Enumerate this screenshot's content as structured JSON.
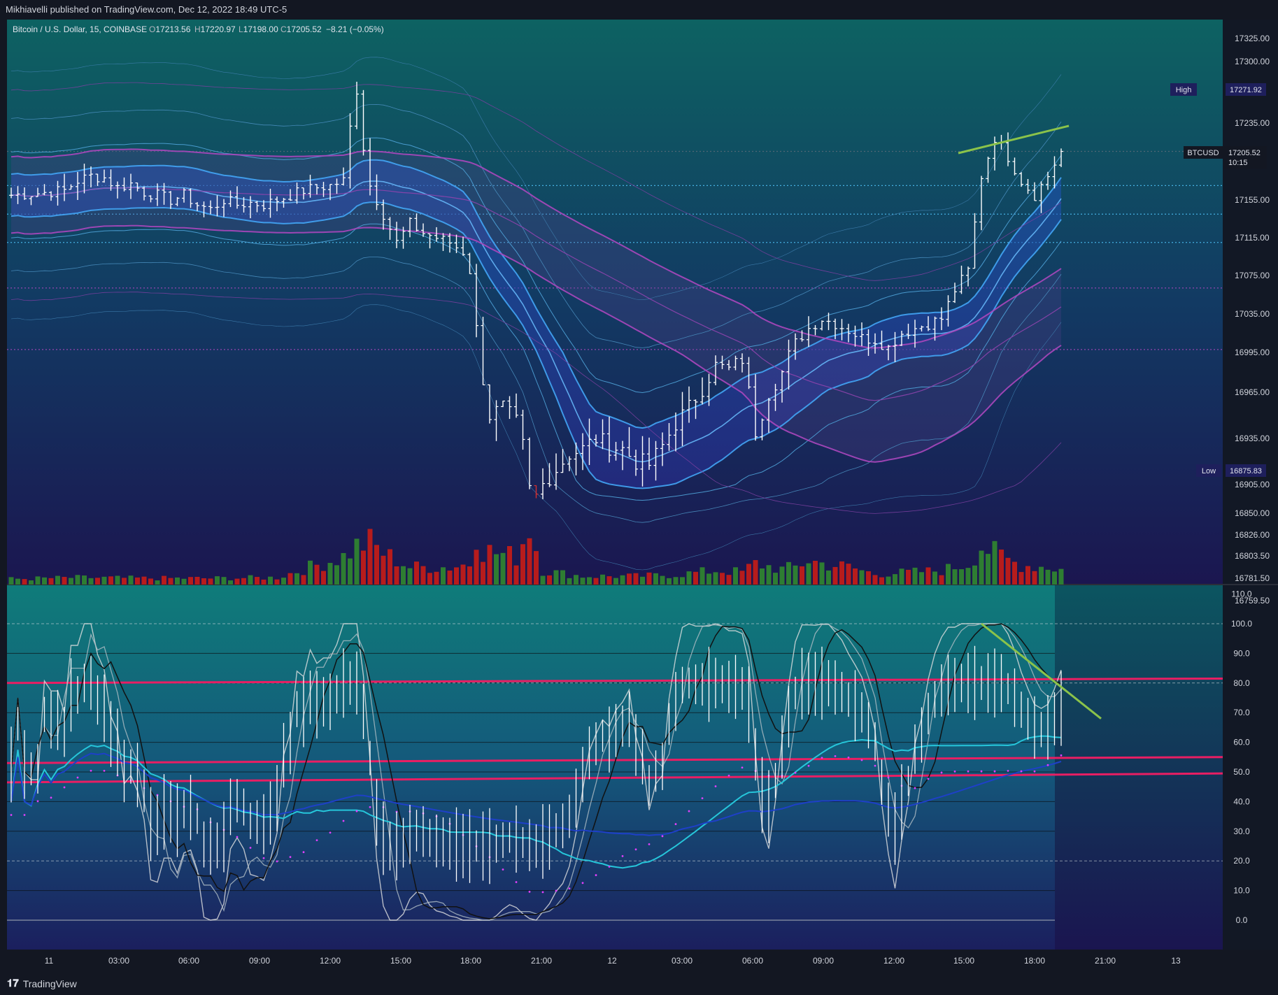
{
  "header": {
    "publish_line": "Mikhiavelli published on TradingView.com, Dec 12, 2022 18:49 UTC-5"
  },
  "symbol_bar": {
    "name": "Bitcoin / U.S. Dollar, 15, COINBASE",
    "o_label": "O",
    "o_value": "17213.56",
    "h_label": "H",
    "h_value": "17220.97",
    "l_label": "L",
    "l_value": "17198.00",
    "c_label": "C",
    "c_value": "17205.52",
    "change": "−8.21 (−0.05%)"
  },
  "price_badges": {
    "high_label": "High",
    "high_value": "17271.92",
    "last_label": "BTCUSD",
    "last_value": "17205.52",
    "countdown": "10:15",
    "low_label": "Low",
    "low_value": "16875.83"
  },
  "footer": {
    "brand": "TradingView",
    "logo_icon": "tradingview-logo-icon"
  },
  "colors": {
    "background": "#131722",
    "up": "#ffffff",
    "down": "#ffffff",
    "vol_up": "#2e7d32",
    "vol_down": "#b71c1c",
    "band_blue": "#2196f3",
    "band_purple": "#ab47bc",
    "trend_green": "#8bc34a",
    "osc_pink": "#e91e63",
    "osc_cyan": "#26c6da",
    "osc_blue": "#1e40c8"
  },
  "chart_data": [
    {
      "type": "candlestick",
      "pane": "price",
      "symbol": "BTCUSD",
      "title": "Bitcoin / U.S. Dollar, 15, COINBASE",
      "yticks": [
        17325.0,
        17300.0,
        17235.0,
        17155.0,
        17115.0,
        17075.0,
        17035.0,
        16995.0,
        16965.0,
        16935.0,
        16905.0,
        16850.0,
        16826.0,
        16803.5,
        16781.5,
        16759.5
      ],
      "ytick_labels": [
        "17325.00",
        "17300.00",
        "17235.00",
        "17155.00",
        "17115.00",
        "17075.00",
        "17035.00",
        "16995.00",
        "16965.00",
        "16935.00",
        "16905.00",
        "16850.00",
        "16826.00",
        "16803.50",
        "16781.50",
        "16759.50"
      ],
      "ylim": [
        16755.0,
        17340.0
      ],
      "xticks": [
        "11",
        "03:00",
        "06:00",
        "09:00",
        "12:00",
        "15:00",
        "18:00",
        "21:00",
        "12",
        "03:00",
        "06:00",
        "09:00",
        "12:00",
        "15:00",
        "18:00",
        "21:00",
        "13"
      ],
      "horizontal_levels": [
        17271.92,
        17205.52,
        17170,
        17140,
        17110,
        17062,
        16998
      ],
      "close_path": [
        [
          0,
          17160
        ],
        [
          4,
          17162
        ],
        [
          8,
          17165
        ],
        [
          10,
          17175
        ],
        [
          12,
          17180
        ],
        [
          14,
          17178
        ],
        [
          16,
          17168
        ],
        [
          18,
          17172
        ],
        [
          20,
          17163
        ],
        [
          22,
          17160
        ],
        [
          24,
          17155
        ],
        [
          26,
          17160
        ],
        [
          28,
          17150
        ],
        [
          30,
          17145
        ],
        [
          32,
          17155
        ],
        [
          34,
          17150
        ],
        [
          36,
          17152
        ],
        [
          38,
          17150
        ],
        [
          40,
          17155
        ],
        [
          42,
          17160
        ],
        [
          44,
          17165
        ],
        [
          46,
          17168
        ],
        [
          48,
          17170
        ],
        [
          50,
          17175
        ],
        [
          51,
          17230
        ],
        [
          52,
          17270
        ],
        [
          53,
          17210
        ],
        [
          54,
          17170
        ],
        [
          56,
          17140
        ],
        [
          58,
          17110
        ],
        [
          60,
          17130
        ],
        [
          62,
          17120
        ],
        [
          64,
          17115
        ],
        [
          66,
          17110
        ],
        [
          68,
          17100
        ],
        [
          69,
          17080
        ],
        [
          70,
          17020
        ],
        [
          71,
          16975
        ],
        [
          72,
          16950
        ],
        [
          74,
          16955
        ],
        [
          76,
          16945
        ],
        [
          77,
          16930
        ],
        [
          78,
          16900
        ],
        [
          79,
          16885
        ],
        [
          80,
          16905
        ],
        [
          82,
          16915
        ],
        [
          84,
          16925
        ],
        [
          86,
          16928
        ],
        [
          88,
          16935
        ],
        [
          90,
          16930
        ],
        [
          92,
          16928
        ],
        [
          94,
          16920
        ],
        [
          96,
          16918
        ],
        [
          98,
          16930
        ],
        [
          100,
          16945
        ],
        [
          102,
          16955
        ],
        [
          104,
          16968
        ],
        [
          106,
          16985
        ],
        [
          108,
          16982
        ],
        [
          110,
          16990
        ],
        [
          112,
          16940
        ],
        [
          114,
          16965
        ],
        [
          116,
          16980
        ],
        [
          118,
          17005
        ],
        [
          120,
          17020
        ],
        [
          122,
          17030
        ],
        [
          124,
          17025
        ],
        [
          126,
          17018
        ],
        [
          128,
          17010
        ],
        [
          130,
          17008
        ],
        [
          132,
          17000
        ],
        [
          134,
          17015
        ],
        [
          136,
          17020
        ],
        [
          138,
          17025
        ],
        [
          140,
          17030
        ],
        [
          142,
          17060
        ],
        [
          144,
          17080
        ],
        [
          146,
          17180
        ],
        [
          148,
          17220
        ],
        [
          150,
          17200
        ],
        [
          152,
          17175
        ],
        [
          154,
          17160
        ],
        [
          156,
          17180
        ],
        [
          158,
          17205.52
        ]
      ],
      "volume_path": [
        [
          0,
          8
        ],
        [
          10,
          10
        ],
        [
          20,
          9
        ],
        [
          30,
          9
        ],
        [
          40,
          10
        ],
        [
          50,
          40
        ],
        [
          52,
          55
        ],
        [
          54,
          60
        ],
        [
          56,
          45
        ],
        [
          60,
          25
        ],
        [
          66,
          25
        ],
        [
          69,
          30
        ],
        [
          70,
          80
        ],
        [
          71,
          50
        ],
        [
          73,
          45
        ],
        [
          76,
          40
        ],
        [
          78,
          85
        ],
        [
          80,
          20
        ],
        [
          86,
          12
        ],
        [
          94,
          12
        ],
        [
          100,
          14
        ],
        [
          106,
          20
        ],
        [
          110,
          18
        ],
        [
          112,
          30
        ],
        [
          116,
          22
        ],
        [
          118,
          25
        ],
        [
          120,
          35
        ],
        [
          122,
          30
        ],
        [
          126,
          25
        ],
        [
          130,
          15
        ],
        [
          140,
          20
        ],
        [
          144,
          30
        ],
        [
          146,
          55
        ],
        [
          148,
          45
        ],
        [
          150,
          35
        ],
        [
          152,
          28
        ],
        [
          156,
          25
        ],
        [
          158,
          22
        ]
      ]
    },
    {
      "type": "line",
      "pane": "oscillator",
      "yticks": [
        110.0,
        100.0,
        90.0,
        80.0,
        70.0,
        60.0,
        50.0,
        40.0,
        30.0,
        20.0,
        10.0,
        0.0
      ],
      "ytick_labels": [
        "110.0",
        "100.0",
        "90.0",
        "80.0",
        "70.0",
        "60.0",
        "50.0",
        "40.0",
        "30.0",
        "20.0",
        "10.0",
        "0.0"
      ],
      "ylim": [
        0,
        110
      ],
      "levels_solid": [
        90,
        80,
        70,
        60,
        50,
        40,
        30,
        10,
        0
      ],
      "levels_dashed": [
        100,
        80,
        20
      ],
      "pink_lines": [
        {
          "x": [
            0,
            185
          ],
          "y": [
            80.0,
            81.5
          ]
        },
        {
          "x": [
            0,
            185
          ],
          "y": [
            53.0,
            55.0
          ]
        },
        {
          "x": [
            0,
            185
          ],
          "y": [
            46.5,
            49.5
          ]
        }
      ],
      "green_line": {
        "x": [
          146,
          164
        ],
        "y": [
          100,
          68
        ]
      }
    }
  ]
}
